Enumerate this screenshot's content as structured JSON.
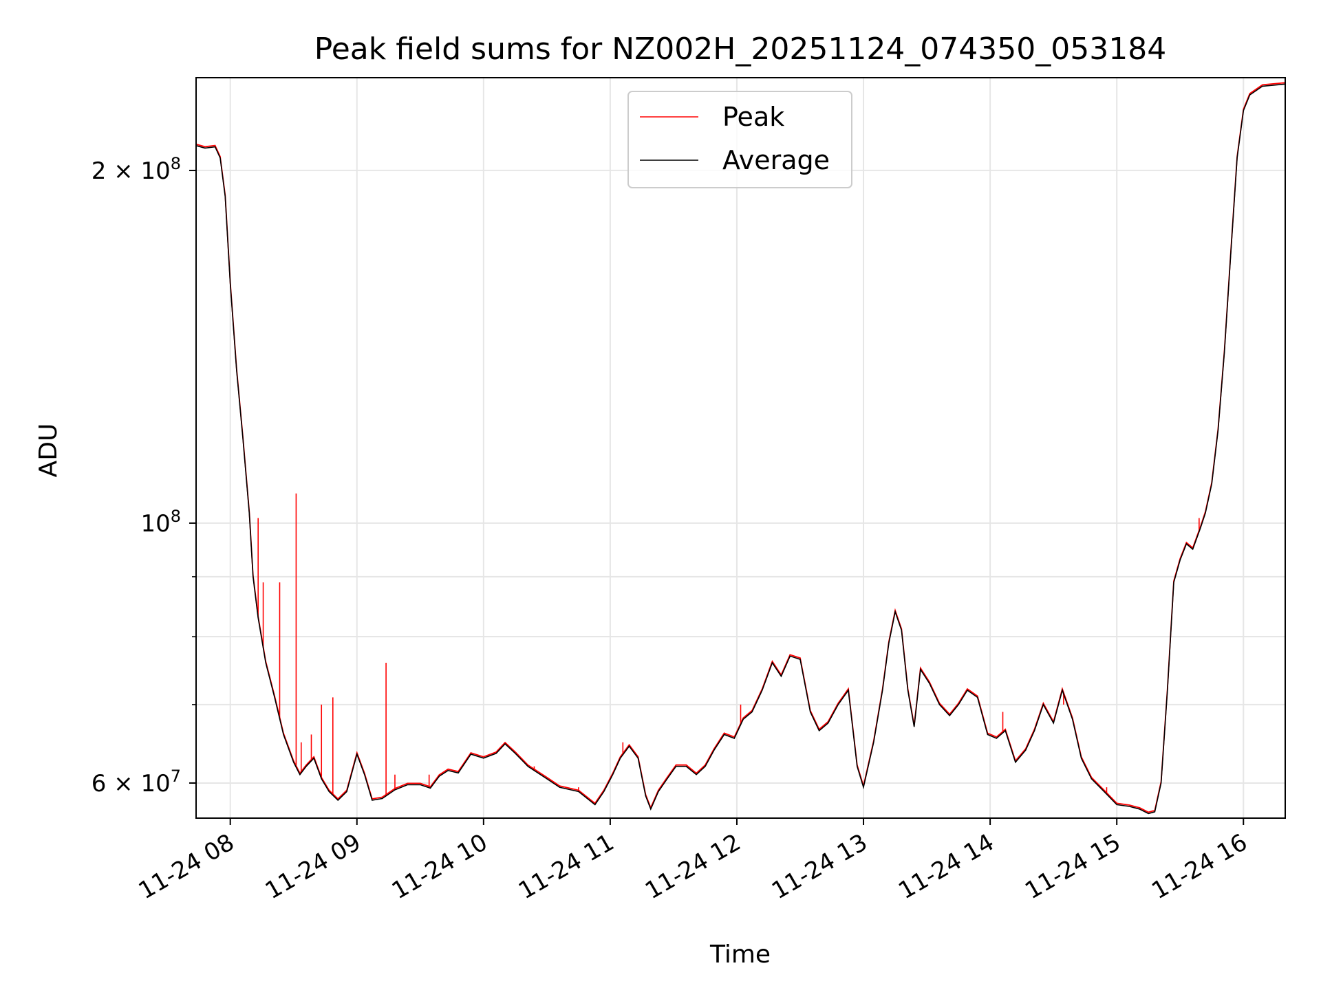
{
  "chart_data": {
    "type": "line",
    "title": "Peak field sums for NZ002H_20251124_074350_053184",
    "xlabel": "Time",
    "ylabel": "ADU",
    "y_scale": "log",
    "ylim": [
      56000000,
      240000000
    ],
    "xlim_hours": [
      7.73,
      16.33
    ],
    "grid": true,
    "legend_position": "upper-center",
    "x_ticks": [
      {
        "value": 8,
        "label": "11-24 08"
      },
      {
        "value": 9,
        "label": "11-24 09"
      },
      {
        "value": 10,
        "label": "11-24 10"
      },
      {
        "value": 11,
        "label": "11-24 11"
      },
      {
        "value": 12,
        "label": "11-24 12"
      },
      {
        "value": 13,
        "label": "11-24 13"
      },
      {
        "value": 14,
        "label": "11-24 14"
      },
      {
        "value": 15,
        "label": "11-24 15"
      },
      {
        "value": 16,
        "label": "11-24 16"
      }
    ],
    "y_ticks": [
      {
        "value": 60000000,
        "label_base": "6 × 10",
        "label_exp": "7"
      },
      {
        "value": 100000000,
        "label_base": "10",
        "label_exp": "8"
      },
      {
        "value": 200000000,
        "label_base": "2 × 10",
        "label_exp": "8"
      }
    ],
    "y_minor_ticks": [
      60000000,
      70000000,
      80000000,
      90000000
    ],
    "series": [
      {
        "name": "Peak",
        "color": "#ff0000",
        "spikes": [
          [
            8.19,
            88000000
          ],
          [
            8.22,
            101000000
          ],
          [
            8.26,
            89000000
          ],
          [
            8.39,
            89000000
          ],
          [
            8.52,
            106000000
          ],
          [
            8.56,
            65000000
          ],
          [
            8.64,
            66000000
          ],
          [
            8.72,
            70000000
          ],
          [
            8.81,
            71000000
          ],
          [
            9.01,
            63000000
          ],
          [
            9.23,
            76000000
          ],
          [
            9.3,
            61000000
          ],
          [
            9.57,
            61000000
          ],
          [
            10.4,
            62000000
          ],
          [
            10.75,
            59500000
          ],
          [
            11.1,
            65000000
          ],
          [
            12.03,
            70000000
          ],
          [
            13.25,
            84000000
          ],
          [
            14.1,
            69000000
          ],
          [
            14.58,
            70000000
          ],
          [
            14.92,
            59500000
          ],
          [
            15.65,
            101000000
          ]
        ]
      },
      {
        "name": "Average",
        "color": "#000000",
        "points": [
          [
            7.73,
            210000000
          ],
          [
            7.8,
            209000000
          ],
          [
            7.88,
            209500000
          ],
          [
            7.92,
            205000000
          ],
          [
            7.96,
            190000000
          ],
          [
            8.0,
            160000000
          ],
          [
            8.05,
            135000000
          ],
          [
            8.1,
            118000000
          ],
          [
            8.15,
            102000000
          ],
          [
            8.18,
            90000000
          ],
          [
            8.22,
            83000000
          ],
          [
            8.28,
            76000000
          ],
          [
            8.35,
            71000000
          ],
          [
            8.42,
            66000000
          ],
          [
            8.5,
            62500000
          ],
          [
            8.55,
            61000000
          ],
          [
            8.6,
            62000000
          ],
          [
            8.66,
            63000000
          ],
          [
            8.72,
            60500000
          ],
          [
            8.78,
            59000000
          ],
          [
            8.85,
            58000000
          ],
          [
            8.92,
            59000000
          ],
          [
            9.0,
            63500000
          ],
          [
            9.06,
            61000000
          ],
          [
            9.12,
            58000000
          ],
          [
            9.2,
            58200000
          ],
          [
            9.3,
            59200000
          ],
          [
            9.4,
            59800000
          ],
          [
            9.5,
            59800000
          ],
          [
            9.58,
            59400000
          ],
          [
            9.65,
            60800000
          ],
          [
            9.72,
            61500000
          ],
          [
            9.8,
            61200000
          ],
          [
            9.9,
            63500000
          ],
          [
            10.0,
            63000000
          ],
          [
            10.1,
            63600000
          ],
          [
            10.17,
            64800000
          ],
          [
            10.25,
            63600000
          ],
          [
            10.35,
            62000000
          ],
          [
            10.5,
            60500000
          ],
          [
            10.6,
            59500000
          ],
          [
            10.75,
            59000000
          ],
          [
            10.88,
            57500000
          ],
          [
            10.95,
            59000000
          ],
          [
            11.02,
            61000000
          ],
          [
            11.08,
            63000000
          ],
          [
            11.15,
            64500000
          ],
          [
            11.22,
            63000000
          ],
          [
            11.28,
            58500000
          ],
          [
            11.32,
            57000000
          ],
          [
            11.38,
            59000000
          ],
          [
            11.45,
            60500000
          ],
          [
            11.52,
            62000000
          ],
          [
            11.6,
            62000000
          ],
          [
            11.68,
            61000000
          ],
          [
            11.75,
            62000000
          ],
          [
            11.82,
            64000000
          ],
          [
            11.9,
            66000000
          ],
          [
            11.98,
            65500000
          ],
          [
            12.05,
            68000000
          ],
          [
            12.12,
            69000000
          ],
          [
            12.2,
            72000000
          ],
          [
            12.28,
            76000000
          ],
          [
            12.35,
            74000000
          ],
          [
            12.42,
            77000000
          ],
          [
            12.5,
            76500000
          ],
          [
            12.58,
            69000000
          ],
          [
            12.65,
            66500000
          ],
          [
            12.72,
            67500000
          ],
          [
            12.8,
            70000000
          ],
          [
            12.88,
            72000000
          ],
          [
            12.95,
            62000000
          ],
          [
            13.0,
            59500000
          ],
          [
            13.08,
            65000000
          ],
          [
            13.15,
            72000000
          ],
          [
            13.2,
            79000000
          ],
          [
            13.25,
            84000000
          ],
          [
            13.3,
            81000000
          ],
          [
            13.35,
            72000000
          ],
          [
            13.4,
            67000000
          ],
          [
            13.45,
            75000000
          ],
          [
            13.52,
            73000000
          ],
          [
            13.6,
            70000000
          ],
          [
            13.68,
            68500000
          ],
          [
            13.75,
            70000000
          ],
          [
            13.82,
            72000000
          ],
          [
            13.9,
            71000000
          ],
          [
            13.98,
            66000000
          ],
          [
            14.05,
            65500000
          ],
          [
            14.12,
            66500000
          ],
          [
            14.2,
            62500000
          ],
          [
            14.28,
            64000000
          ],
          [
            14.35,
            66500000
          ],
          [
            14.42,
            70000000
          ],
          [
            14.5,
            67500000
          ],
          [
            14.57,
            72000000
          ],
          [
            14.65,
            68000000
          ],
          [
            14.72,
            63000000
          ],
          [
            14.8,
            60500000
          ],
          [
            14.9,
            59000000
          ],
          [
            15.0,
            57500000
          ],
          [
            15.1,
            57300000
          ],
          [
            15.18,
            57000000
          ],
          [
            15.25,
            56500000
          ],
          [
            15.3,
            56700000
          ],
          [
            15.35,
            60000000
          ],
          [
            15.4,
            72000000
          ],
          [
            15.45,
            89000000
          ],
          [
            15.5,
            93000000
          ],
          [
            15.55,
            96000000
          ],
          [
            15.6,
            95000000
          ],
          [
            15.66,
            99000000
          ],
          [
            15.7,
            102000000
          ],
          [
            15.75,
            108000000
          ],
          [
            15.8,
            120000000
          ],
          [
            15.85,
            140000000
          ],
          [
            15.9,
            170000000
          ],
          [
            15.95,
            205000000
          ],
          [
            16.0,
            225000000
          ],
          [
            16.05,
            232000000
          ],
          [
            16.15,
            236000000
          ],
          [
            16.33,
            237000000
          ]
        ]
      }
    ]
  }
}
